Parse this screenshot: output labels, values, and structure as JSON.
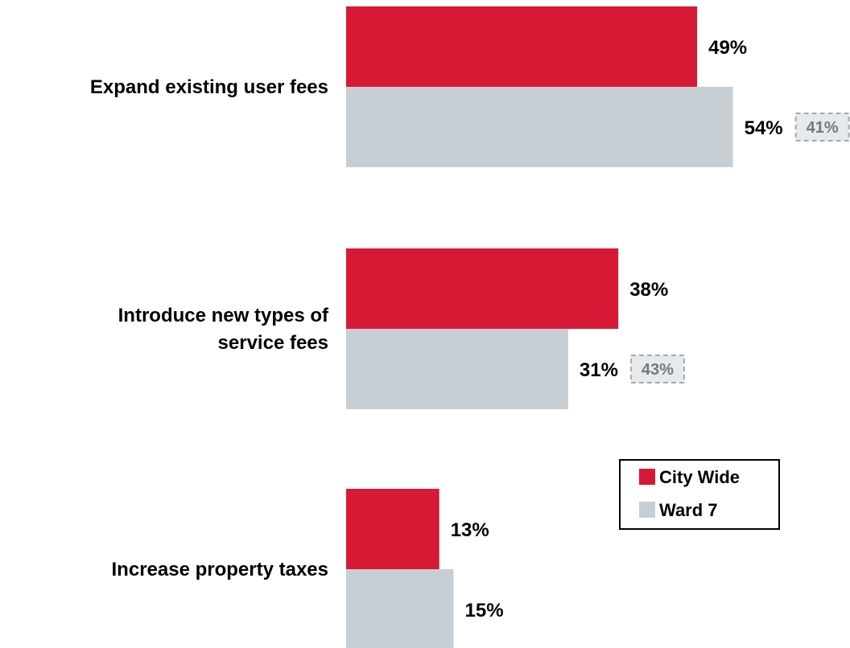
{
  "chart_data": {
    "type": "bar",
    "orientation": "horizontal",
    "categories": [
      [
        "Expand existing user fees"
      ],
      [
        "Introduce new types of",
        "service fees"
      ],
      [
        "Increase property taxes"
      ]
    ],
    "series": [
      {
        "name": "City Wide",
        "color": "#d61a35",
        "values": [
          49,
          38,
          13
        ],
        "labels": [
          "49%",
          "38%",
          "13%"
        ]
      },
      {
        "name": "Ward 7",
        "color": "#c8cfd4",
        "values": [
          54,
          31,
          15
        ],
        "labels": [
          "54%",
          "31%",
          "15%"
        ]
      }
    ],
    "comparison_labels": [
      "41%",
      "43%",
      null
    ],
    "legend": {
      "position": "bottom-right",
      "items": [
        "City Wide",
        "Ward 7"
      ]
    },
    "xlim": [
      0,
      100
    ],
    "title": "",
    "xlabel": "",
    "ylabel": "",
    "grid": false
  }
}
